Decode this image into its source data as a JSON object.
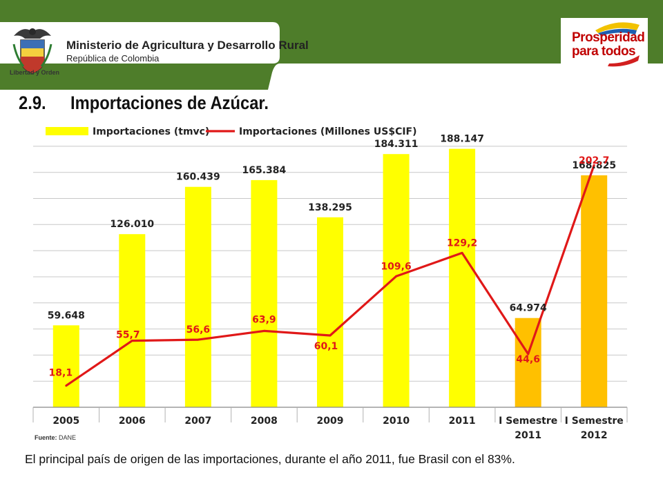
{
  "header": {
    "ministry_name": "Ministerio de Agricultura y Desarrollo Rural",
    "country": "República de Colombia",
    "motto": "Libertad y Orden",
    "brand_line1": "Prosperidad",
    "brand_line2": "para todos",
    "band_color": "#4e7d2a"
  },
  "slide": {
    "section_number": "2.9.",
    "title": "Importaciones de Azúcar.",
    "source_label": "Fuente:",
    "source_value": "DANE",
    "footnote": "El principal país de origen de las importaciones, durante el año 2011, fue Brasil con el 83%."
  },
  "chart_data": {
    "type": "bar",
    "categories": [
      "2005",
      "2006",
      "2007",
      "2008",
      "2009",
      "2010",
      "2011",
      "I Semestre 2011",
      "I Semestre 2012"
    ],
    "series": [
      {
        "name": "Importaciones (tmvc)",
        "kind": "bar",
        "values": [
          59648,
          126010,
          160439,
          165384,
          138295,
          184311,
          188147,
          64974,
          168825
        ],
        "labels": [
          "59.648",
          "126.010",
          "160.439",
          "165.384",
          "138.295",
          "184.311",
          "188.147",
          "64.974",
          "168.825"
        ],
        "colors": [
          "#ffff00",
          "#ffff00",
          "#ffff00",
          "#ffff00",
          "#ffff00",
          "#ffff00",
          "#ffff00",
          "#ffc000",
          "#ffc000"
        ]
      },
      {
        "name": "Importaciones (Millones US$CIF)",
        "kind": "line",
        "values": [
          18.1,
          55.7,
          56.6,
          63.9,
          60.1,
          109.6,
          129.2,
          44.6,
          202.7
        ],
        "labels": [
          "18,1",
          "55,7",
          "56,6",
          "63,9",
          "60,1",
          "109,6",
          "129,2",
          "44,6",
          "202,7"
        ],
        "color": "#e01818"
      }
    ],
    "bar_ylim": [
      0,
      200000
    ],
    "line_ylim": [
      0,
      230
    ],
    "grid": true,
    "legend": "top"
  }
}
